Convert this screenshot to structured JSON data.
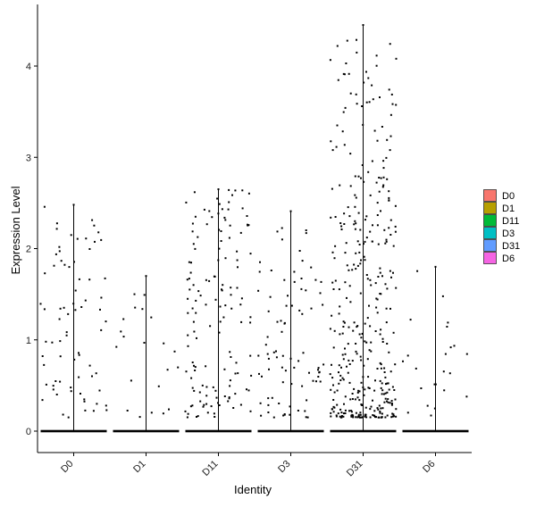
{
  "chart_data": {
    "type": "violin-jitter",
    "xlabel": "Identity",
    "ylabel": "Expression Level",
    "categories": [
      "D0",
      "D1",
      "D11",
      "D3",
      "D31",
      "D6"
    ],
    "colors": [
      "#F8766D",
      "#B79F00",
      "#00BA38",
      "#00BFC4",
      "#619CFF",
      "#F564E3"
    ],
    "max_values": [
      2.48,
      1.7,
      2.65,
      2.41,
      4.45,
      1.8
    ],
    "nonzero_counts": [
      75,
      22,
      140,
      85,
      380,
      24
    ],
    "ylim": [
      -0.25,
      4.6
    ],
    "yticks": [
      0,
      1,
      2,
      3,
      4
    ],
    "grid": false,
    "legend": {
      "position": "right",
      "labels": [
        "D0",
        "D1",
        "D11",
        "D3",
        "D31",
        "D6"
      ]
    }
  }
}
